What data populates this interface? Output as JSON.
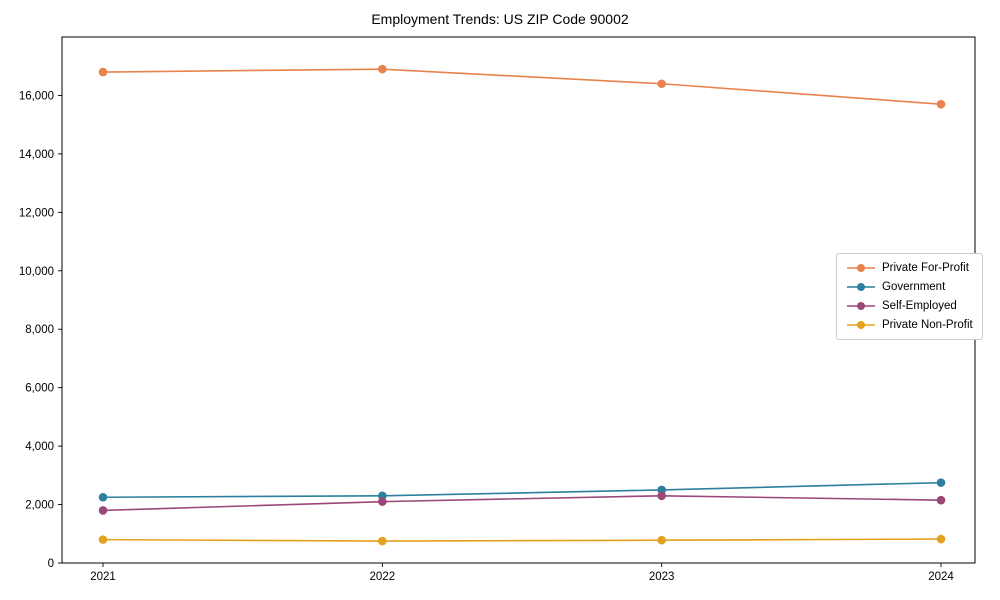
{
  "chart_data": {
    "type": "line",
    "title": "Employment Trends: US ZIP Code 90002",
    "x": [
      "2021",
      "2022",
      "2023",
      "2024"
    ],
    "xlabel": "",
    "ylabel": "",
    "ylim": [
      0,
      18000
    ],
    "yticks": [
      0,
      2000,
      4000,
      6000,
      8000,
      10000,
      12000,
      14000,
      16000
    ],
    "grid": false,
    "legend_position": "center right",
    "marker": "circle",
    "series": [
      {
        "name": "Private For-Profit",
        "color": "#e8834e",
        "values": [
          16800,
          16900,
          16400,
          15700
        ]
      },
      {
        "name": "Government",
        "color": "#2d7f9d",
        "values": [
          2250,
          2300,
          2500,
          2750
        ]
      },
      {
        "name": "Self-Employed",
        "color": "#9c4779",
        "values": [
          1800,
          2100,
          2300,
          2150
        ]
      },
      {
        "name": "Private Non-Profit",
        "color": "#e3a21e",
        "values": [
          800,
          750,
          780,
          820
        ]
      }
    ]
  }
}
